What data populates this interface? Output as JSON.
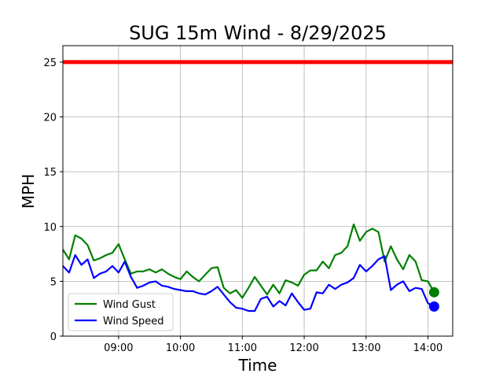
{
  "chart_data": {
    "type": "line",
    "title": "SUG 15m Wind - 8/29/2025",
    "xlabel": "Time",
    "ylabel": "MPH",
    "x_unit": "time of day",
    "x_ticks": [
      "09:00",
      "10:00",
      "11:00",
      "12:00",
      "13:00",
      "14:00"
    ],
    "xlim": [
      "08:06",
      "14:24"
    ],
    "y_ticks": [
      "0",
      "5",
      "10",
      "15",
      "20",
      "25"
    ],
    "ylim": [
      0,
      26.5
    ],
    "grid": true,
    "legend": "lower-left",
    "threshold": {
      "value": 25,
      "color": "#ff0000"
    },
    "x": [
      "08:06",
      "08:12",
      "08:18",
      "08:24",
      "08:30",
      "08:36",
      "08:42",
      "08:48",
      "08:54",
      "09:00",
      "09:06",
      "09:12",
      "09:18",
      "09:24",
      "09:30",
      "09:36",
      "09:42",
      "09:48",
      "09:54",
      "10:00",
      "10:06",
      "10:12",
      "10:18",
      "10:24",
      "10:30",
      "10:36",
      "10:42",
      "10:48",
      "10:54",
      "11:00",
      "11:06",
      "11:12",
      "11:18",
      "11:24",
      "11:30",
      "11:36",
      "11:42",
      "11:48",
      "11:54",
      "12:00",
      "12:06",
      "12:12",
      "12:18",
      "12:24",
      "12:30",
      "12:36",
      "12:42",
      "12:48",
      "12:54",
      "13:00",
      "13:06",
      "13:12",
      "13:18",
      "13:24",
      "13:30",
      "13:36",
      "13:42",
      "13:48",
      "13:54",
      "14:00",
      "14:06"
    ],
    "series": [
      {
        "name": "Wind Gust",
        "color": "#008000",
        "values": [
          7.9,
          7.0,
          9.2,
          8.9,
          8.3,
          6.9,
          7.1,
          7.4,
          7.6,
          8.4,
          7.0,
          5.7,
          5.9,
          5.9,
          6.1,
          5.8,
          6.1,
          5.7,
          5.4,
          5.2,
          5.9,
          5.4,
          5.0,
          5.6,
          6.2,
          6.3,
          4.4,
          3.9,
          4.2,
          3.5,
          4.4,
          5.4,
          4.6,
          3.8,
          4.7,
          3.9,
          5.1,
          4.9,
          4.6,
          5.6,
          6.0,
          6.0,
          6.8,
          6.2,
          7.4,
          7.6,
          8.2,
          10.2,
          8.7,
          9.5,
          9.8,
          9.5,
          6.8,
          8.2,
          7.0,
          6.1,
          7.4,
          6.8,
          5.1,
          5.0,
          4.0
        ],
        "last_marker": 4.0
      },
      {
        "name": "Wind Speed",
        "color": "#0000ff",
        "values": [
          6.4,
          5.8,
          7.4,
          6.5,
          7.0,
          5.3,
          5.7,
          5.9,
          6.4,
          5.8,
          6.8,
          5.4,
          4.4,
          4.6,
          4.9,
          5.0,
          4.6,
          4.5,
          4.3,
          4.2,
          4.1,
          4.1,
          3.9,
          3.8,
          4.1,
          4.5,
          3.8,
          3.1,
          2.6,
          2.5,
          2.3,
          2.3,
          3.4,
          3.6,
          2.7,
          3.2,
          2.8,
          3.9,
          3.1,
          2.4,
          2.5,
          4.0,
          3.9,
          4.7,
          4.3,
          4.7,
          4.9,
          5.3,
          6.5,
          5.9,
          6.4,
          7.0,
          7.3,
          4.2,
          4.7,
          5.0,
          4.1,
          4.4,
          4.3,
          3.0,
          2.7
        ],
        "last_marker": 2.7
      }
    ]
  }
}
